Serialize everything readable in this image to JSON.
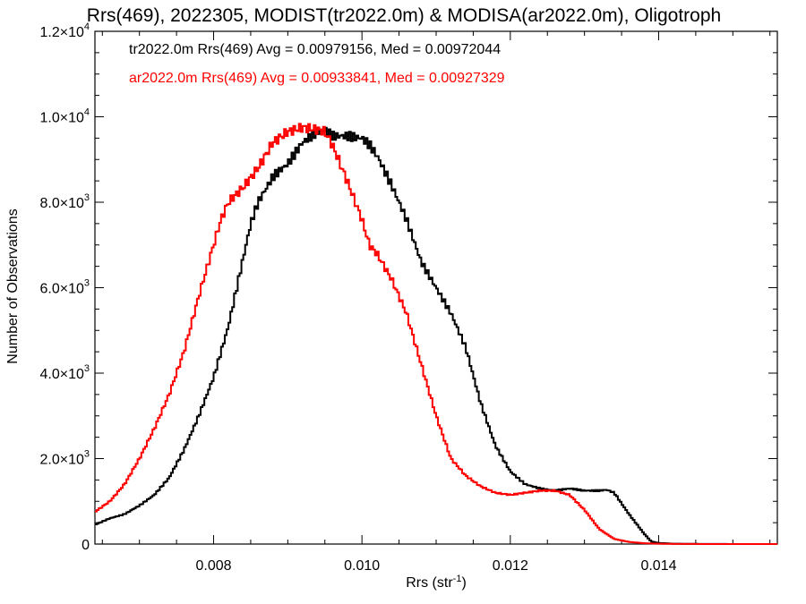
{
  "chart_data": {
    "type": "line",
    "title": "Rrs(469), 2022305, MODIST(tr2022.0m) & MODISA(ar2022.0m), Oligotroph",
    "xlabel": "Rrs (str",
    "xlabel_sup": "-1",
    "xlabel_end": ")",
    "ylabel": "Number of Observations",
    "xlim": [
      0.0064,
      0.0156
    ],
    "ylim": [
      0,
      12000
    ],
    "grid": false,
    "x_ticks": [
      {
        "value": 0.008,
        "label": "0.008"
      },
      {
        "value": 0.01,
        "label": "0.010"
      },
      {
        "value": 0.012,
        "label": "0.012"
      },
      {
        "value": 0.014,
        "label": "0.014"
      }
    ],
    "y_ticks": [
      {
        "value": 0,
        "mant": "0",
        "exp": ""
      },
      {
        "value": 2000,
        "mant": "2.0×10",
        "exp": "3"
      },
      {
        "value": 4000,
        "mant": "4.0×10",
        "exp": "3"
      },
      {
        "value": 6000,
        "mant": "6.0×10",
        "exp": "3"
      },
      {
        "value": 8000,
        "mant": "8.0×10",
        "exp": "3"
      },
      {
        "value": 10000,
        "mant": "1.0×10",
        "exp": "4"
      },
      {
        "value": 12000,
        "mant": "1.2×10",
        "exp": "4"
      }
    ],
    "legend_placement": "top-left",
    "series": [
      {
        "label": "tr2022.0m Rrs(469) Avg = 0.00979156, Med = 0.00972044",
        "color": "#000000",
        "x": [
          0.0064,
          0.0066,
          0.0068,
          0.007,
          0.0072,
          0.0074,
          0.0076,
          0.0078,
          0.008,
          0.0082,
          0.0084,
          0.0085,
          0.0086,
          0.0088,
          0.009,
          0.0092,
          0.0094,
          0.0095,
          0.0096,
          0.0098,
          0.01,
          0.0101,
          0.0102,
          0.0104,
          0.0106,
          0.0108,
          0.011,
          0.0112,
          0.0114,
          0.0116,
          0.0118,
          0.012,
          0.0122,
          0.0124,
          0.0126,
          0.0128,
          0.013,
          0.0132,
          0.0133,
          0.0134,
          0.0136,
          0.0138,
          0.0139,
          0.014,
          0.0142,
          0.0146,
          0.015,
          0.0156
        ],
        "y": [
          450,
          600,
          700,
          900,
          1150,
          1550,
          2200,
          3000,
          3900,
          5100,
          6700,
          7500,
          8000,
          8600,
          8900,
          9400,
          9650,
          9700,
          9550,
          9550,
          9500,
          9350,
          9100,
          8400,
          7600,
          6600,
          6000,
          5400,
          4600,
          3300,
          2300,
          1700,
          1400,
          1300,
          1250,
          1300,
          1250,
          1250,
          1270,
          1200,
          700,
          250,
          60,
          25,
          8,
          3,
          1,
          0
        ]
      },
      {
        "label": "ar2022.0m Rrs(469) Avg = 0.00933841, Med = 0.00927329",
        "color": "#ff0000",
        "x": [
          0.0064,
          0.0066,
          0.0068,
          0.007,
          0.0072,
          0.0074,
          0.0076,
          0.0078,
          0.008,
          0.0081,
          0.0082,
          0.0084,
          0.0086,
          0.0088,
          0.009,
          0.0092,
          0.0094,
          0.0095,
          0.0096,
          0.0098,
          0.01,
          0.0101,
          0.0102,
          0.0104,
          0.0106,
          0.0108,
          0.011,
          0.0112,
          0.0114,
          0.0116,
          0.0118,
          0.012,
          0.0122,
          0.0124,
          0.0126,
          0.0128,
          0.013,
          0.0132,
          0.0134,
          0.0136,
          0.0138,
          0.014,
          0.0142,
          0.0146,
          0.015,
          0.0156
        ],
        "y": [
          750,
          1000,
          1400,
          2000,
          2700,
          3500,
          4500,
          5800,
          7000,
          7600,
          8000,
          8350,
          8800,
          9400,
          9650,
          9750,
          9700,
          9650,
          9350,
          8500,
          7600,
          7000,
          6800,
          6200,
          5400,
          4200,
          3000,
          2000,
          1600,
          1350,
          1200,
          1150,
          1200,
          1250,
          1250,
          1150,
          800,
          350,
          120,
          50,
          20,
          8,
          3,
          1,
          0,
          0
        ]
      }
    ]
  }
}
